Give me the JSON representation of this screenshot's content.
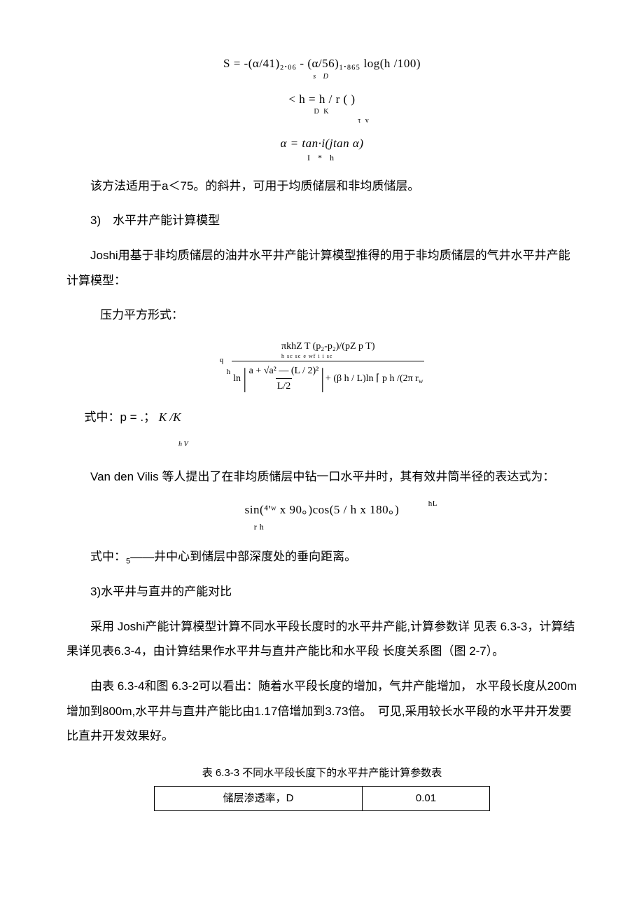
{
  "formulas": {
    "f1": "S = -(α/41)₂.₀₆ - (α/56)₁.₈₆₅ log(h /100)",
    "f1_sub": "s                                       D",
    "f2": "< h = h / r (           )",
    "f2_sub": "D   K",
    "f2_sub2": "τ v",
    "f3": "α = tan·i(jtan α)",
    "f3_sub": "I                   * h"
  },
  "para1": "该方法适用于a＜75。的斜井，可用于均质储层和非均质储层。",
  "para2_prefix": "3)　水平井产能计算模型",
  "para3": "Joshi用基于非均质储层的油井水平井产能计算模型推得的用于非均质储层的气井水平井产能计算模型：",
  "para4": "压力平方形式：",
  "complex_formula": {
    "left_label": "q",
    "left_sub": "h",
    "numerator": "πkhZ T (p₂-p₂)/(pZ p T)",
    "numerator_sub": "h      sc sc        e           wf       i   i    sc",
    "ln_label": "ln",
    "bracket_top": "a + √a² — (L / 2)²",
    "bracket_bot": "L/2",
    "right_part": "+ (β h / L)ln ⌈ p h /(2π  r",
    "right_sub": "w"
  },
  "para5_prefix": "式中：p = .；",
  "para5_ital": "K /K",
  "para5_sub": "h V",
  "para6": "Van den Vilis 等人提出了在非均质储层中钻一口水平井时，其有效井筒半径的表达式为：",
  "formula_eff": "sin(⁴'ʷ x 90。)cos(5 / h x 180。)",
  "formula_eff_left": "r   h",
  "formula_eff_right": "hL",
  "para7_prefix": "式中：",
  "para7_sup": "5",
  "para7_rest": "——井中心到储层中部深度处的垂向距离。",
  "para8": "3)水平井与直井的产能对比",
  "para9": "采用 Joshi产能计算模型计算不同水平段长度时的水平井产能,计算参数详 见表 6.3-3，计算结果详见表6.3-4，由计算结果作水平井与直井产能比和水平段 长度关系图（图 2-7）。",
  "para10": "由表 6.3-4和图 6.3-2可以看出：随着水平段长度的增加，气井产能增加， 水平段长度从200m增加到800m,水平井与直井产能比由1.17倍增加到3.73倍。　可见,采用较长水平段的水平井开发要比直井开发效果好。",
  "table_title": "表 6.3-3 不同水平段长度下的水平井产能计算参数表",
  "table": {
    "rows": [
      [
        "储层渗透率，D",
        "0.01"
      ]
    ],
    "col_widths": [
      "62%",
      "38%"
    ],
    "border_color": "#000000",
    "font_size": 15
  },
  "colors": {
    "background": "#ffffff",
    "text": "#000000"
  },
  "fonts": {
    "body": "SimSun",
    "formula": "Times New Roman",
    "body_size": 17,
    "formula_size": 16
  }
}
